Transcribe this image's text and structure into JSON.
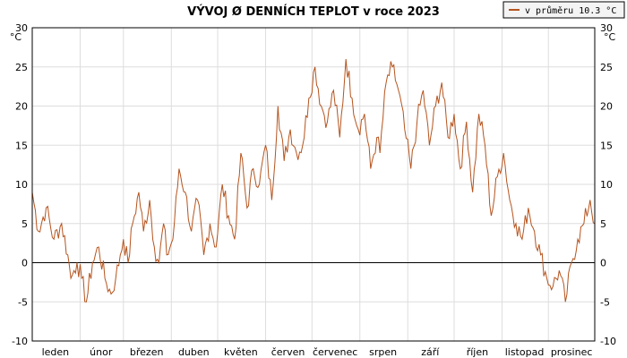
{
  "colors": {
    "series": "#b5541e",
    "grid": "#dddddd",
    "zero": "#000000",
    "frame": "#000000",
    "legend_bg": "#f4f4f4"
  },
  "chart_data": {
    "type": "line",
    "title": "VÝVOJ Ø DENNÍCH TEPLOT v roce 2023",
    "xlabel": "",
    "ylabel": "",
    "y_unit": "°C",
    "ylim": [
      -10,
      30
    ],
    "yticks": [
      -10,
      -5,
      0,
      5,
      10,
      15,
      20,
      25,
      30
    ],
    "grid": true,
    "legend_position": "top-right",
    "legend_label": "v průměru 10.3 °C",
    "months": [
      "leden",
      "únor",
      "březen",
      "duben",
      "květen",
      "červen",
      "červenec",
      "srpen",
      "září",
      "říjen",
      "listopad",
      "prosinec"
    ],
    "series": [
      {
        "x_unit": "day of year",
        "x": [
          1,
          5,
          10,
          15,
          20,
          24,
          26,
          28,
          30,
          33,
          36,
          40,
          44,
          48,
          52,
          55,
          58,
          60,
          63,
          66,
          70,
          73,
          77,
          80,
          83,
          86,
          88,
          92,
          96,
          100,
          104,
          108,
          112,
          116,
          120,
          124,
          128,
          132,
          136,
          140,
          144,
          148,
          152,
          156,
          160,
          164,
          168,
          172,
          176,
          180,
          184,
          188,
          192,
          196,
          200,
          204,
          208,
          212,
          216,
          220,
          224,
          226,
          230,
          234,
          238,
          242,
          246,
          250,
          254,
          258,
          262,
          266,
          270,
          274,
          278,
          282,
          286,
          290,
          294,
          298,
          302,
          306,
          310,
          314,
          318,
          322,
          326,
          330,
          334,
          338,
          342,
          346,
          350,
          354,
          358,
          362,
          365
        ],
        "values": [
          9,
          4,
          7,
          3,
          5,
          1,
          -2,
          -1,
          0,
          -2,
          -5,
          0,
          2,
          -2,
          -4,
          -2,
          1,
          3,
          0,
          5,
          9,
          4,
          8,
          2,
          0,
          5,
          1,
          3,
          12,
          9,
          4,
          8,
          1,
          5,
          2,
          10,
          6,
          3,
          14,
          7,
          12,
          10,
          15,
          8,
          20,
          13,
          17,
          14,
          15,
          21,
          25,
          20,
          18,
          22,
          16,
          26,
          21,
          17,
          19,
          12,
          16,
          14,
          23,
          25,
          22,
          17,
          12,
          18,
          22,
          15,
          20,
          23,
          16,
          19,
          12,
          18,
          9,
          19,
          15,
          6,
          11,
          14,
          8,
          5,
          3,
          7,
          4,
          1,
          -2,
          -3,
          -1,
          -5,
          0,
          3,
          5,
          8,
          5
        ]
      }
    ]
  }
}
